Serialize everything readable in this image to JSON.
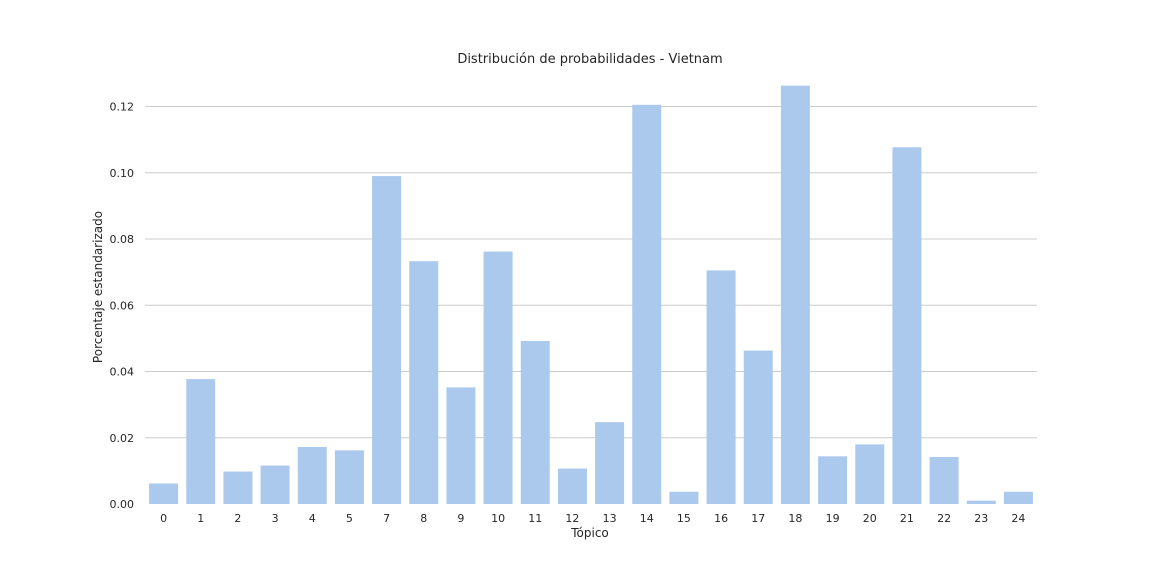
{
  "chart_data": {
    "type": "bar",
    "title": "Distribución de probabilidades - Vietnam",
    "xlabel": "Tópico",
    "ylabel": "Porcentaje estandarizado",
    "categories": [
      "0",
      "1",
      "2",
      "3",
      "4",
      "5",
      "7",
      "8",
      "9",
      "10",
      "11",
      "12",
      "13",
      "14",
      "15",
      "16",
      "17",
      "18",
      "19",
      "20",
      "21",
      "22",
      "23",
      "24"
    ],
    "values": [
      0.0062,
      0.0377,
      0.0098,
      0.0116,
      0.0172,
      0.0162,
      0.099,
      0.0733,
      0.0352,
      0.0762,
      0.0492,
      0.0107,
      0.0247,
      0.1205,
      0.0037,
      0.0705,
      0.0463,
      0.1263,
      0.0144,
      0.018,
      0.1077,
      0.0142,
      0.001,
      0.0037
    ],
    "ylim": [
      0,
      0.128
    ],
    "yticks": [
      "0.00",
      "0.02",
      "0.04",
      "0.06",
      "0.08",
      "0.10",
      "0.12"
    ],
    "grid": "horizontal",
    "bar_color": "#abc9ed",
    "grid_color": "#cccccc"
  }
}
